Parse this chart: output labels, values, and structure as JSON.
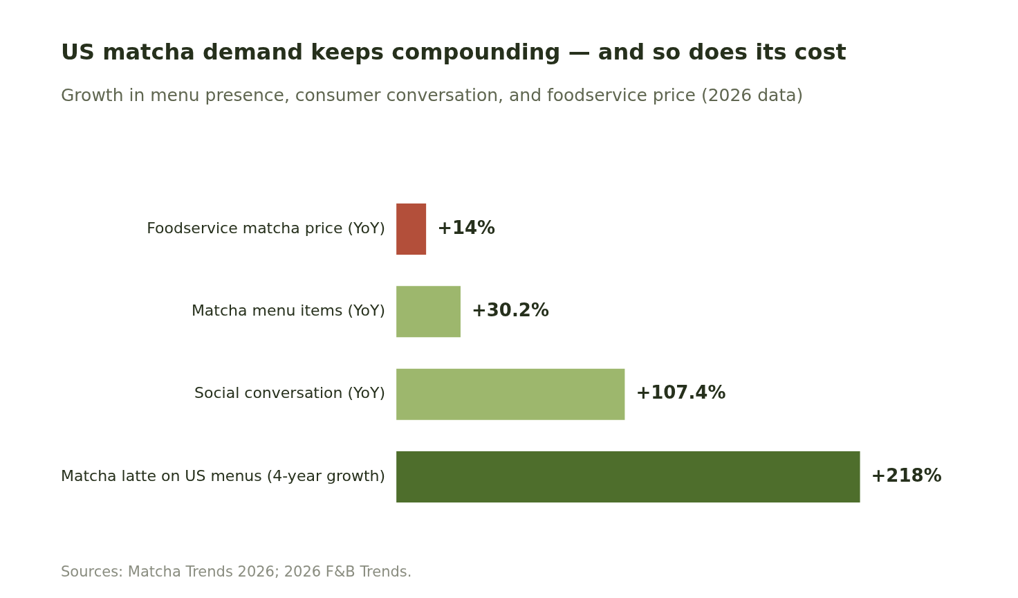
{
  "chart_data": {
    "type": "bar",
    "orientation": "horizontal",
    "title": "US matcha demand keeps compounding — and so does its cost",
    "subtitle": "Growth in menu presence, consumer conversation, and foodservice price (2026 data)",
    "categories": [
      "Foodservice matcha price (YoY)",
      "Matcha menu items (YoY)",
      "Social conversation (YoY)",
      "Matcha latte on US menus (4-year growth)"
    ],
    "values": [
      14,
      30.2,
      107.4,
      218
    ],
    "colors": [
      "#b34f3a",
      "#9db76d",
      "#9db76d",
      "#4e6e2c"
    ],
    "value_labels": [
      "+14%",
      "+30.2%",
      "+107.4%",
      "+218%"
    ],
    "annotations": [
      "Sources: Matcha Trends 2026; 2026 F&B Trends."
    ]
  }
}
